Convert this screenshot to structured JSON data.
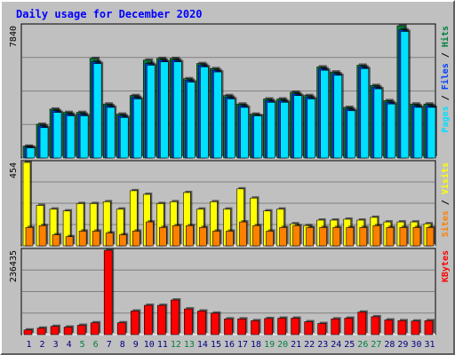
{
  "title": "Daily usage for December 2020",
  "colors": {
    "frame_bg": "#c0c0c0",
    "plot_bg": "#c0c0c0",
    "title": "#0000ff",
    "grid": "#808080",
    "hits": "#008040",
    "files": "#0040ff",
    "pages": "#00e0ff",
    "visits": "#ffff00",
    "sites": "#ff8000",
    "kbytes": "#ff0000",
    "weekend_label": "#008040",
    "weekday_label": "#000080"
  },
  "chart_data": [
    {
      "type": "bar",
      "panel": "hits-files-pages",
      "ymax_label": "7840",
      "ylim": [
        0,
        7840
      ],
      "grid": true,
      "legend_label": [
        {
          "text": "Pages",
          "color": "#00e0ff"
        },
        {
          "text": " / ",
          "color": "#000000"
        },
        {
          "text": "Files",
          "color": "#0040ff"
        },
        {
          "text": " / ",
          "color": "#000000"
        },
        {
          "text": "Hits",
          "color": "#008040"
        }
      ],
      "categories": [
        "1",
        "2",
        "3",
        "4",
        "5",
        "6",
        "7",
        "8",
        "9",
        "10",
        "11",
        "12",
        "13",
        "14",
        "15",
        "16",
        "17",
        "18",
        "19",
        "20",
        "21",
        "22",
        "23",
        "24",
        "25",
        "26",
        "27",
        "28",
        "29",
        "30",
        "31"
      ],
      "series": [
        {
          "name": "Hits",
          "color": "#008040",
          "values": [
            700,
            2000,
            2900,
            2700,
            2700,
            5900,
            3200,
            2600,
            3700,
            5800,
            5900,
            5900,
            4700,
            5600,
            5300,
            3700,
            3200,
            2600,
            3500,
            3500,
            3900,
            3700,
            5400,
            5100,
            3000,
            5500,
            4300,
            3400,
            7840,
            3200,
            3200
          ]
        },
        {
          "name": "Files",
          "color": "#0040ff",
          "values": [
            650,
            1900,
            2800,
            2600,
            2600,
            5700,
            3100,
            2500,
            3600,
            5600,
            5800,
            5800,
            4600,
            5500,
            5200,
            3600,
            3100,
            2500,
            3400,
            3400,
            3800,
            3600,
            5300,
            5000,
            2900,
            5400,
            4200,
            3300,
            7600,
            3100,
            3100
          ]
        },
        {
          "name": "Pages",
          "color": "#00e0ff",
          "values": [
            600,
            1800,
            2700,
            2500,
            2500,
            5600,
            3000,
            2400,
            3500,
            5500,
            5700,
            5700,
            4500,
            5400,
            5100,
            3500,
            3000,
            2500,
            3300,
            3300,
            3700,
            3500,
            5200,
            4900,
            2800,
            5300,
            4100,
            3200,
            7500,
            3000,
            3000
          ]
        }
      ]
    },
    {
      "type": "bar",
      "panel": "visits-sites",
      "ymax_label": "454",
      "ylim": [
        0,
        454
      ],
      "grid": true,
      "legend_label": [
        {
          "text": "Sites",
          "color": "#ff8000"
        },
        {
          "text": " / ",
          "color": "#000000"
        },
        {
          "text": "Visits",
          "color": "#ffff00"
        }
      ],
      "categories": [
        "1",
        "2",
        "3",
        "4",
        "5",
        "6",
        "7",
        "8",
        "9",
        "10",
        "11",
        "12",
        "13",
        "14",
        "15",
        "16",
        "17",
        "18",
        "19",
        "20",
        "21",
        "22",
        "23",
        "24",
        "25",
        "26",
        "27",
        "28",
        "29",
        "30",
        "31"
      ],
      "series": [
        {
          "name": "Visits",
          "color": "#ffff00",
          "values": [
            454,
            220,
            200,
            190,
            230,
            230,
            240,
            200,
            300,
            280,
            230,
            240,
            290,
            200,
            240,
            200,
            310,
            260,
            190,
            200,
            120,
            110,
            140,
            140,
            145,
            140,
            155,
            130,
            130,
            130,
            120
          ]
        },
        {
          "name": "Sites",
          "color": "#ff8000",
          "values": [
            100,
            110,
            60,
            50,
            80,
            80,
            70,
            60,
            80,
            130,
            100,
            110,
            110,
            100,
            80,
            80,
            130,
            110,
            80,
            100,
            110,
            100,
            100,
            100,
            100,
            100,
            110,
            100,
            100,
            100,
            100
          ]
        }
      ]
    },
    {
      "type": "bar",
      "panel": "kbytes",
      "ymax_label": "236435",
      "ylim": [
        0,
        236435
      ],
      "grid": true,
      "legend_label": [
        {
          "text": "KBytes",
          "color": "#ff0000"
        }
      ],
      "categories": [
        "1",
        "2",
        "3",
        "4",
        "5",
        "6",
        "7",
        "8",
        "9",
        "10",
        "11",
        "12",
        "13",
        "14",
        "15",
        "16",
        "17",
        "18",
        "19",
        "20",
        "21",
        "22",
        "23",
        "24",
        "25",
        "26",
        "27",
        "28",
        "29",
        "30",
        "31"
      ],
      "series": [
        {
          "name": "KBytes",
          "color": "#ff0000",
          "values": [
            13000,
            18000,
            23000,
            21000,
            26000,
            33000,
            236435,
            33000,
            66000,
            82000,
            82000,
            97000,
            72000,
            66000,
            60000,
            44000,
            44000,
            39000,
            45000,
            46000,
            46000,
            36000,
            31000,
            44000,
            46000,
            63000,
            50000,
            41000,
            39000,
            38000,
            39000
          ]
        }
      ]
    }
  ],
  "x_labels": [
    {
      "text": "1",
      "weekend": false
    },
    {
      "text": "2",
      "weekend": false
    },
    {
      "text": "3",
      "weekend": false
    },
    {
      "text": "4",
      "weekend": false
    },
    {
      "text": "5",
      "weekend": true
    },
    {
      "text": "6",
      "weekend": true
    },
    {
      "text": "7",
      "weekend": false
    },
    {
      "text": "8",
      "weekend": false
    },
    {
      "text": "9",
      "weekend": false
    },
    {
      "text": "10",
      "weekend": false
    },
    {
      "text": "11",
      "weekend": false
    },
    {
      "text": "12",
      "weekend": true
    },
    {
      "text": "13",
      "weekend": true
    },
    {
      "text": "14",
      "weekend": false
    },
    {
      "text": "15",
      "weekend": false
    },
    {
      "text": "16",
      "weekend": false
    },
    {
      "text": "17",
      "weekend": false
    },
    {
      "text": "18",
      "weekend": false
    },
    {
      "text": "19",
      "weekend": true
    },
    {
      "text": "20",
      "weekend": true
    },
    {
      "text": "21",
      "weekend": false
    },
    {
      "text": "22",
      "weekend": false
    },
    {
      "text": "23",
      "weekend": false
    },
    {
      "text": "24",
      "weekend": false
    },
    {
      "text": "25",
      "weekend": false
    },
    {
      "text": "26",
      "weekend": true
    },
    {
      "text": "27",
      "weekend": true
    },
    {
      "text": "28",
      "weekend": false
    },
    {
      "text": "29",
      "weekend": false
    },
    {
      "text": "30",
      "weekend": false
    },
    {
      "text": "31",
      "weekend": false
    }
  ]
}
